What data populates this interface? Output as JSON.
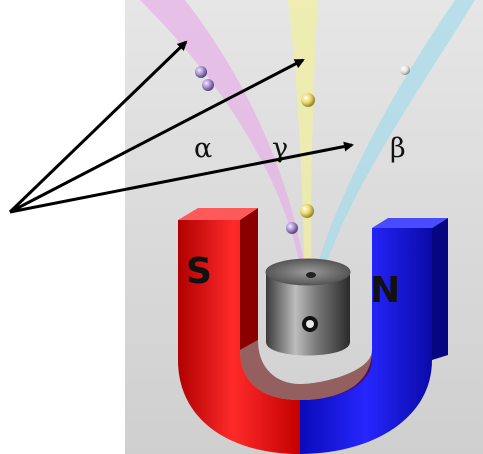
{
  "labels": {
    "alpha": "α",
    "gamma": "γ",
    "beta": "β",
    "south_pole": "S",
    "north_pole": "N"
  },
  "colors": {
    "background_panel": "#d9d9d9",
    "magnet_south": "#e01c1c",
    "magnet_north": "#1a1ae0",
    "alpha_beam": "#e6b3e6",
    "gamma_beam": "#f2f0a0",
    "beta_beam": "#a8dcea",
    "arrow": "#000000"
  },
  "icons": {
    "alpha_particle": "double-sphere",
    "gamma_particle": "yellow-sphere",
    "beta_particle": "small-white-sphere",
    "source": "lead-cylinder"
  }
}
